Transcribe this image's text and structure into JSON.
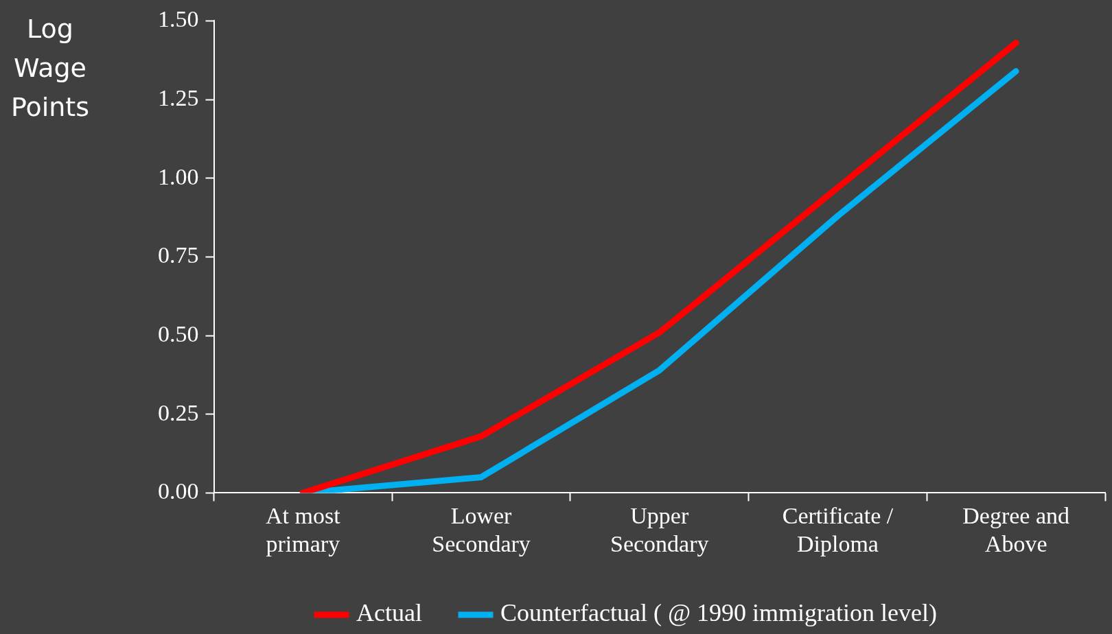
{
  "chart_data": {
    "type": "line",
    "ylabel": "Log Wage Points",
    "categories": [
      "At most primary",
      "Lower Secondary",
      "Upper Secondary",
      "Certificate / Diploma",
      "Degree and Above"
    ],
    "series": [
      {
        "name": "Actual",
        "color": "#ff0000",
        "values": [
          0,
          0.18,
          0.51,
          0.97,
          1.43
        ]
      },
      {
        "name": "Counterfactual ( @ 1990 immigration level)",
        "color": "#00b0f0",
        "values": [
          0,
          0.05,
          0.39,
          0.88,
          1.34
        ]
      }
    ],
    "ylim": [
      0,
      1.5
    ],
    "yticks": [
      {
        "value": 0,
        "label": "0.00"
      },
      {
        "value": 0.25,
        "label": "0.25"
      },
      {
        "value": 0.5,
        "label": "0.50"
      },
      {
        "value": 0.75,
        "label": "0.75"
      },
      {
        "value": 1,
        "label": "1.00"
      },
      {
        "value": 1.25,
        "label": "1.25"
      },
      {
        "value": 1.5,
        "label": "1.50"
      }
    ],
    "legend": "bottom",
    "grid": false,
    "marker": "none",
    "line_style": "solid"
  }
}
